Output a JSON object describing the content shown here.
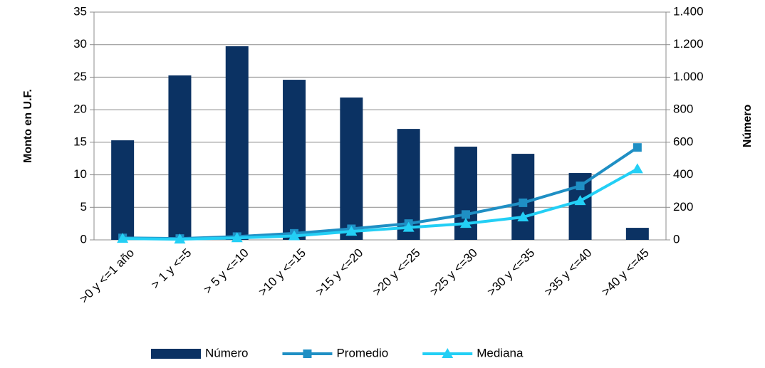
{
  "chart_data": {
    "type": "bar-line",
    "y_label": "Monto en U.F.",
    "y2_label": "Número",
    "categories": [
      ">0 y <=1 año",
      "> 1 y <=5",
      "> 5 y <=10",
      ">10 y <=15",
      ">15 y <=20",
      ">20 y <=25",
      ">25 y <=30",
      ">30 y <=35",
      ">35 y <=40",
      ">40 y <=45"
    ],
    "series": [
      {
        "name": "Número",
        "type": "bar",
        "axis": "y2",
        "color": "#0b3263",
        "values": [
          612,
          1011,
          1190,
          984,
          875,
          682,
          573,
          529,
          411,
          74
        ]
      },
      {
        "name": "Promedio",
        "type": "line",
        "marker": "square",
        "color": "#1f8fc4",
        "values": [
          0.3,
          0.2,
          0.5,
          1.0,
          1.7,
          2.5,
          3.9,
          5.7,
          8.3,
          14.2
        ]
      },
      {
        "name": "Mediana",
        "type": "line",
        "marker": "triangle",
        "color": "#23cff5",
        "values": [
          0.2,
          0.1,
          0.3,
          0.6,
          1.3,
          1.9,
          2.5,
          3.5,
          6.0,
          10.9
        ]
      }
    ],
    "ylim": [
      0,
      35
    ],
    "yticks": [
      0,
      5,
      10,
      15,
      20,
      25,
      30,
      35
    ],
    "y2lim": [
      0,
      1400
    ],
    "y2ticks": [
      0,
      200,
      400,
      600,
      800,
      {
        "value": 1000,
        "label": "1.000"
      },
      {
        "value": 1200,
        "label": "1.200"
      },
      {
        "value": 1400,
        "label": "1.400"
      }
    ],
    "grid": true,
    "legend": "bottom"
  }
}
